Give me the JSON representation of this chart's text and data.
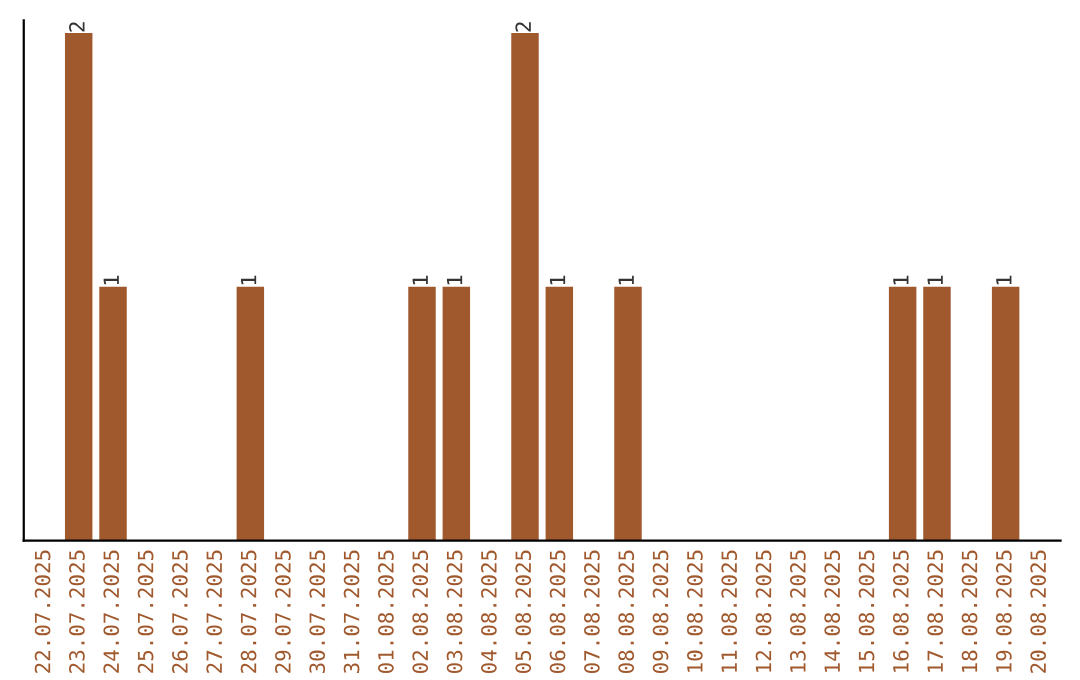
{
  "chart_data": {
    "type": "bar",
    "categories": [
      "22.07.2025",
      "23.07.2025",
      "24.07.2025",
      "25.07.2025",
      "26.07.2025",
      "27.07.2025",
      "28.07.2025",
      "29.07.2025",
      "30.07.2025",
      "31.07.2025",
      "01.08.2025",
      "02.08.2025",
      "03.08.2025",
      "04.08.2025",
      "05.08.2025",
      "06.08.2025",
      "07.08.2025",
      "08.08.2025",
      "09.08.2025",
      "10.08.2025",
      "11.08.2025",
      "12.08.2025",
      "13.08.2025",
      "14.08.2025",
      "15.08.2025",
      "16.08.2025",
      "17.08.2025",
      "18.08.2025",
      "19.08.2025",
      "20.08.2025"
    ],
    "values": [
      0,
      2,
      1,
      0,
      0,
      0,
      1,
      0,
      0,
      0,
      0,
      1,
      1,
      0,
      2,
      1,
      0,
      1,
      0,
      0,
      0,
      0,
      0,
      0,
      0,
      1,
      1,
      0,
      1,
      0
    ],
    "value_labels": [
      null,
      "2",
      "1",
      null,
      null,
      null,
      "1",
      null,
      null,
      null,
      null,
      "1",
      "1",
      null,
      "2",
      "1",
      null,
      "1",
      null,
      null,
      null,
      null,
      null,
      null,
      null,
      "1",
      "1",
      null,
      "1",
      null
    ],
    "color": "#a0582d",
    "ylim": [
      0,
      2.05
    ],
    "tick_labels": "x",
    "grid": false,
    "legend": false
  }
}
